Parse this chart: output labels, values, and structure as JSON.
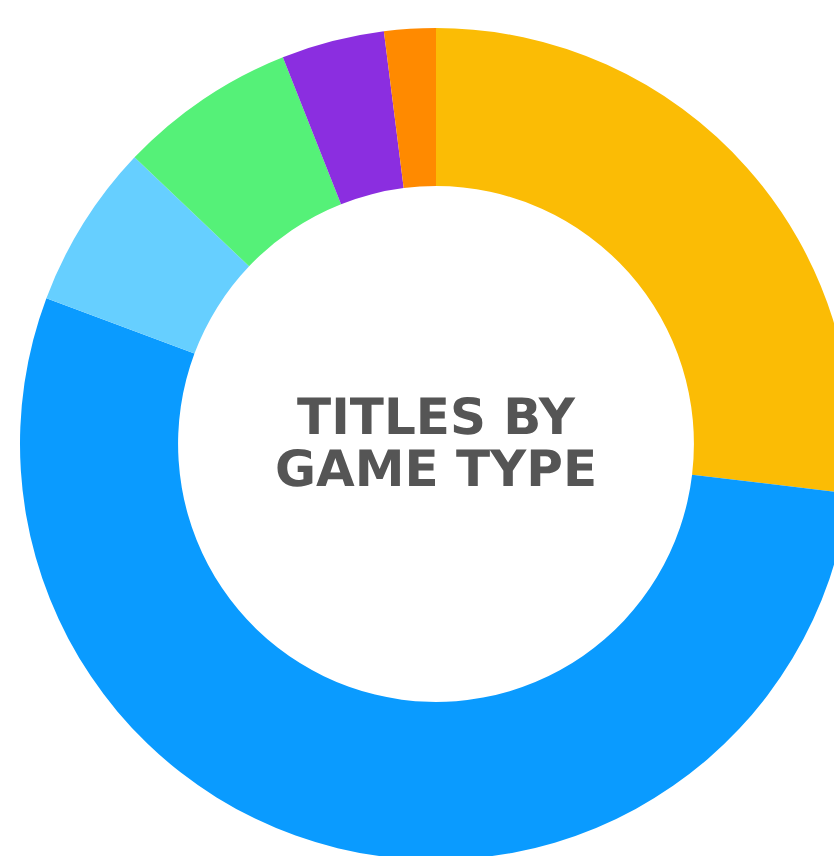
{
  "chart_data": {
    "type": "donut",
    "title": "TITLES BY GAME TYPE",
    "categories": [
      null,
      null,
      null,
      null,
      null,
      null
    ],
    "values": [
      26.9,
      53.8,
      6.4,
      6.9,
      4.0,
      2.0
    ],
    "colors": [
      "#fbbc05",
      "#0a9bff",
      "#66cfff",
      "#55f178",
      "#8b2ee0",
      "#ff8a00"
    ],
    "legend": false
  }
}
